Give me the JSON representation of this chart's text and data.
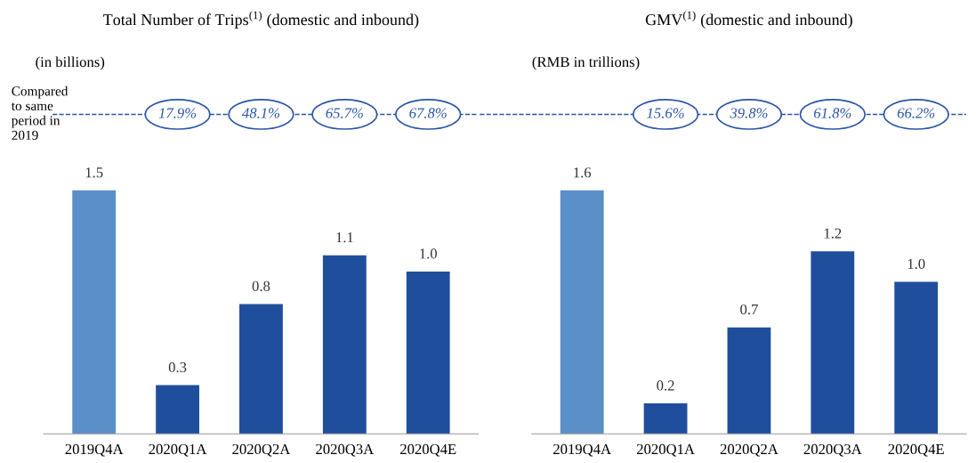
{
  "chart_data": [
    {
      "type": "bar",
      "title": "Total Number of Trips$^{(1)}$ (domestic and inbound)",
      "categories": [
        "2019Q4A",
        "2020Q1A",
        "2020Q2A",
        "2020Q3A",
        "2020Q4E"
      ],
      "values": [
        1.5,
        0.3,
        0.8,
        1.1,
        1.0
      ],
      "value_labels": [
        "1.5",
        "0.3",
        "0.8",
        "1.1",
        "1.0"
      ],
      "colors": [
        "#5b8fc8",
        "#1f4f9c",
        "#1f4f9c",
        "#1f4f9c",
        "#1f4f9c"
      ],
      "annotations": [
        "(in billions)",
        "Compared\nto same\nperiod in\n2019",
        "17.9%",
        "48.1%",
        "65.7%",
        "67.8%"
      ]
    },
    {
      "type": "bar",
      "title": "GMV$^{(1)}$ (domestic and inbound)",
      "categories": [
        "2019Q4A",
        "2020Q1A",
        "2020Q2A",
        "2020Q3A",
        "2020Q4E"
      ],
      "values": [
        1.6,
        0.2,
        0.7,
        1.2,
        1.0
      ],
      "value_labels": [
        "1.6",
        "0.2",
        "0.7",
        "1.2",
        "1.0"
      ],
      "colors": [
        "#5b8fc8",
        "#1f4f9c",
        "#1f4f9c",
        "#1f4f9c",
        "#1f4f9c"
      ],
      "annotations": [
        "(RMB in trillions)",
        "15.6%",
        "39.8%",
        "61.8%",
        "66.2%"
      ]
    }
  ]
}
